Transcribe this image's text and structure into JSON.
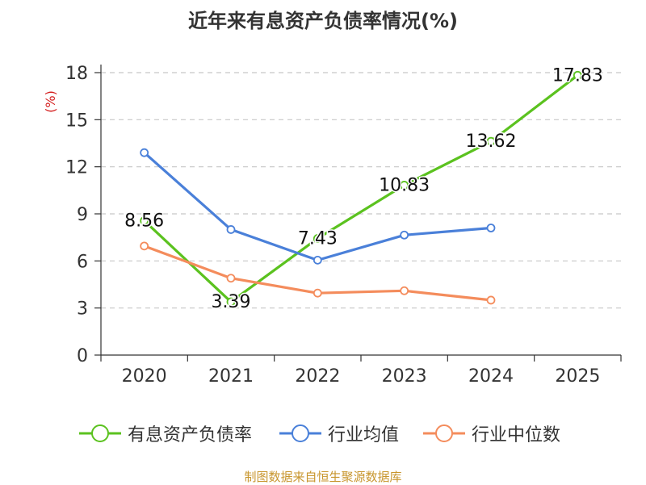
{
  "title": "近年来有息资产负债率情况(%)",
  "source": "制图数据来自恒生聚源数据库",
  "chart_data": {
    "type": "line",
    "ylabel": "(%)",
    "categories": [
      "2020",
      "2021",
      "2022",
      "2023",
      "2024",
      "2025"
    ],
    "ylim": [
      0,
      18
    ],
    "yticks": [
      0,
      3,
      6,
      9,
      12,
      15,
      18
    ],
    "grid": true,
    "legend_position": "bottom",
    "series": [
      {
        "name": "有息资产负债率",
        "color": "#5bc21f",
        "values": [
          8.56,
          3.39,
          7.43,
          10.83,
          13.62,
          17.83
        ],
        "labels": [
          "8.56",
          "3.39",
          "7.43",
          "10.83",
          "13.62",
          "17.83"
        ]
      },
      {
        "name": "行业均值",
        "color": "#4a80d9",
        "values": [
          12.9,
          8.0,
          6.05,
          7.65,
          8.1,
          null
        ]
      },
      {
        "name": "行业中位数",
        "color": "#f48c5c",
        "values": [
          6.95,
          4.9,
          3.95,
          4.1,
          3.5,
          null
        ]
      }
    ]
  }
}
